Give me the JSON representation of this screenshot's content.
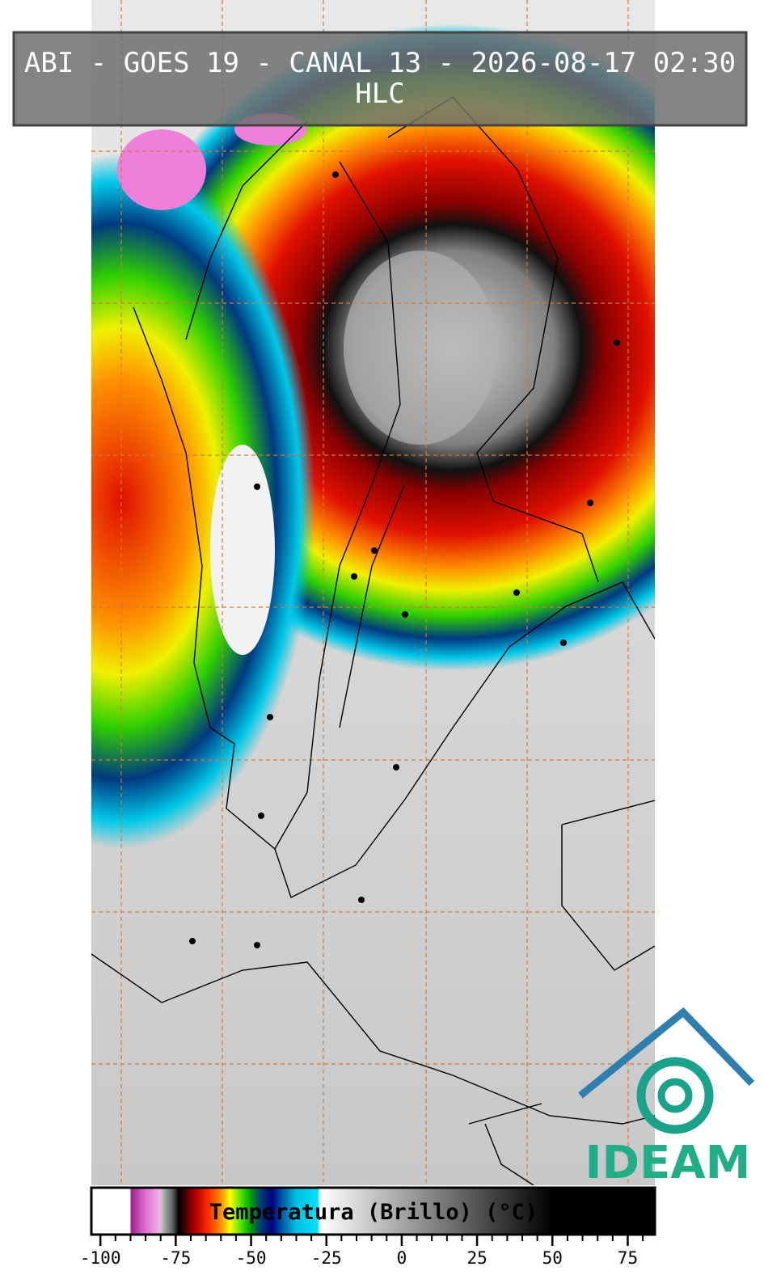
{
  "header": {
    "title": "ABI - GOES 19 - CANAL 13 - 2026-08-17 02:30",
    "subtitle": "HLC"
  },
  "colorbar": {
    "label": "Temperatura (Brillo) (°C)",
    "xlim": [
      -103,
      84
    ],
    "xticks": [
      -100,
      -75,
      -50,
      -25,
      0,
      25,
      50,
      75
    ],
    "minor_step": 5,
    "colormap": [
      {
        "value": -103,
        "color": "#ffffff"
      },
      {
        "value": -90,
        "color": "#ffffff"
      },
      {
        "value": -90,
        "color": "#9a1f8c"
      },
      {
        "value": -85,
        "color": "#e070d0"
      },
      {
        "value": -80,
        "color": "#f0b8ea"
      },
      {
        "value": -80,
        "color": "#c8c8c8"
      },
      {
        "value": -76,
        "color": "#606060"
      },
      {
        "value": -74,
        "color": "#000000"
      },
      {
        "value": -72,
        "color": "#400000"
      },
      {
        "value": -68,
        "color": "#c00000"
      },
      {
        "value": -64,
        "color": "#ff3000"
      },
      {
        "value": -60,
        "color": "#ff9000"
      },
      {
        "value": -57,
        "color": "#ffff00"
      },
      {
        "value": -53,
        "color": "#40e000"
      },
      {
        "value": -50,
        "color": "#00a000"
      },
      {
        "value": -47,
        "color": "#004070"
      },
      {
        "value": -43,
        "color": "#000080"
      },
      {
        "value": -40,
        "color": "#0050a0"
      },
      {
        "value": -35,
        "color": "#00c0e0"
      },
      {
        "value": -28,
        "color": "#00e0ff"
      },
      {
        "value": -27,
        "color": "#ffffff"
      },
      {
        "value": 50,
        "color": "#000000"
      },
      {
        "value": 84,
        "color": "#000000"
      }
    ]
  },
  "logo": {
    "text": "IDEAM"
  }
}
